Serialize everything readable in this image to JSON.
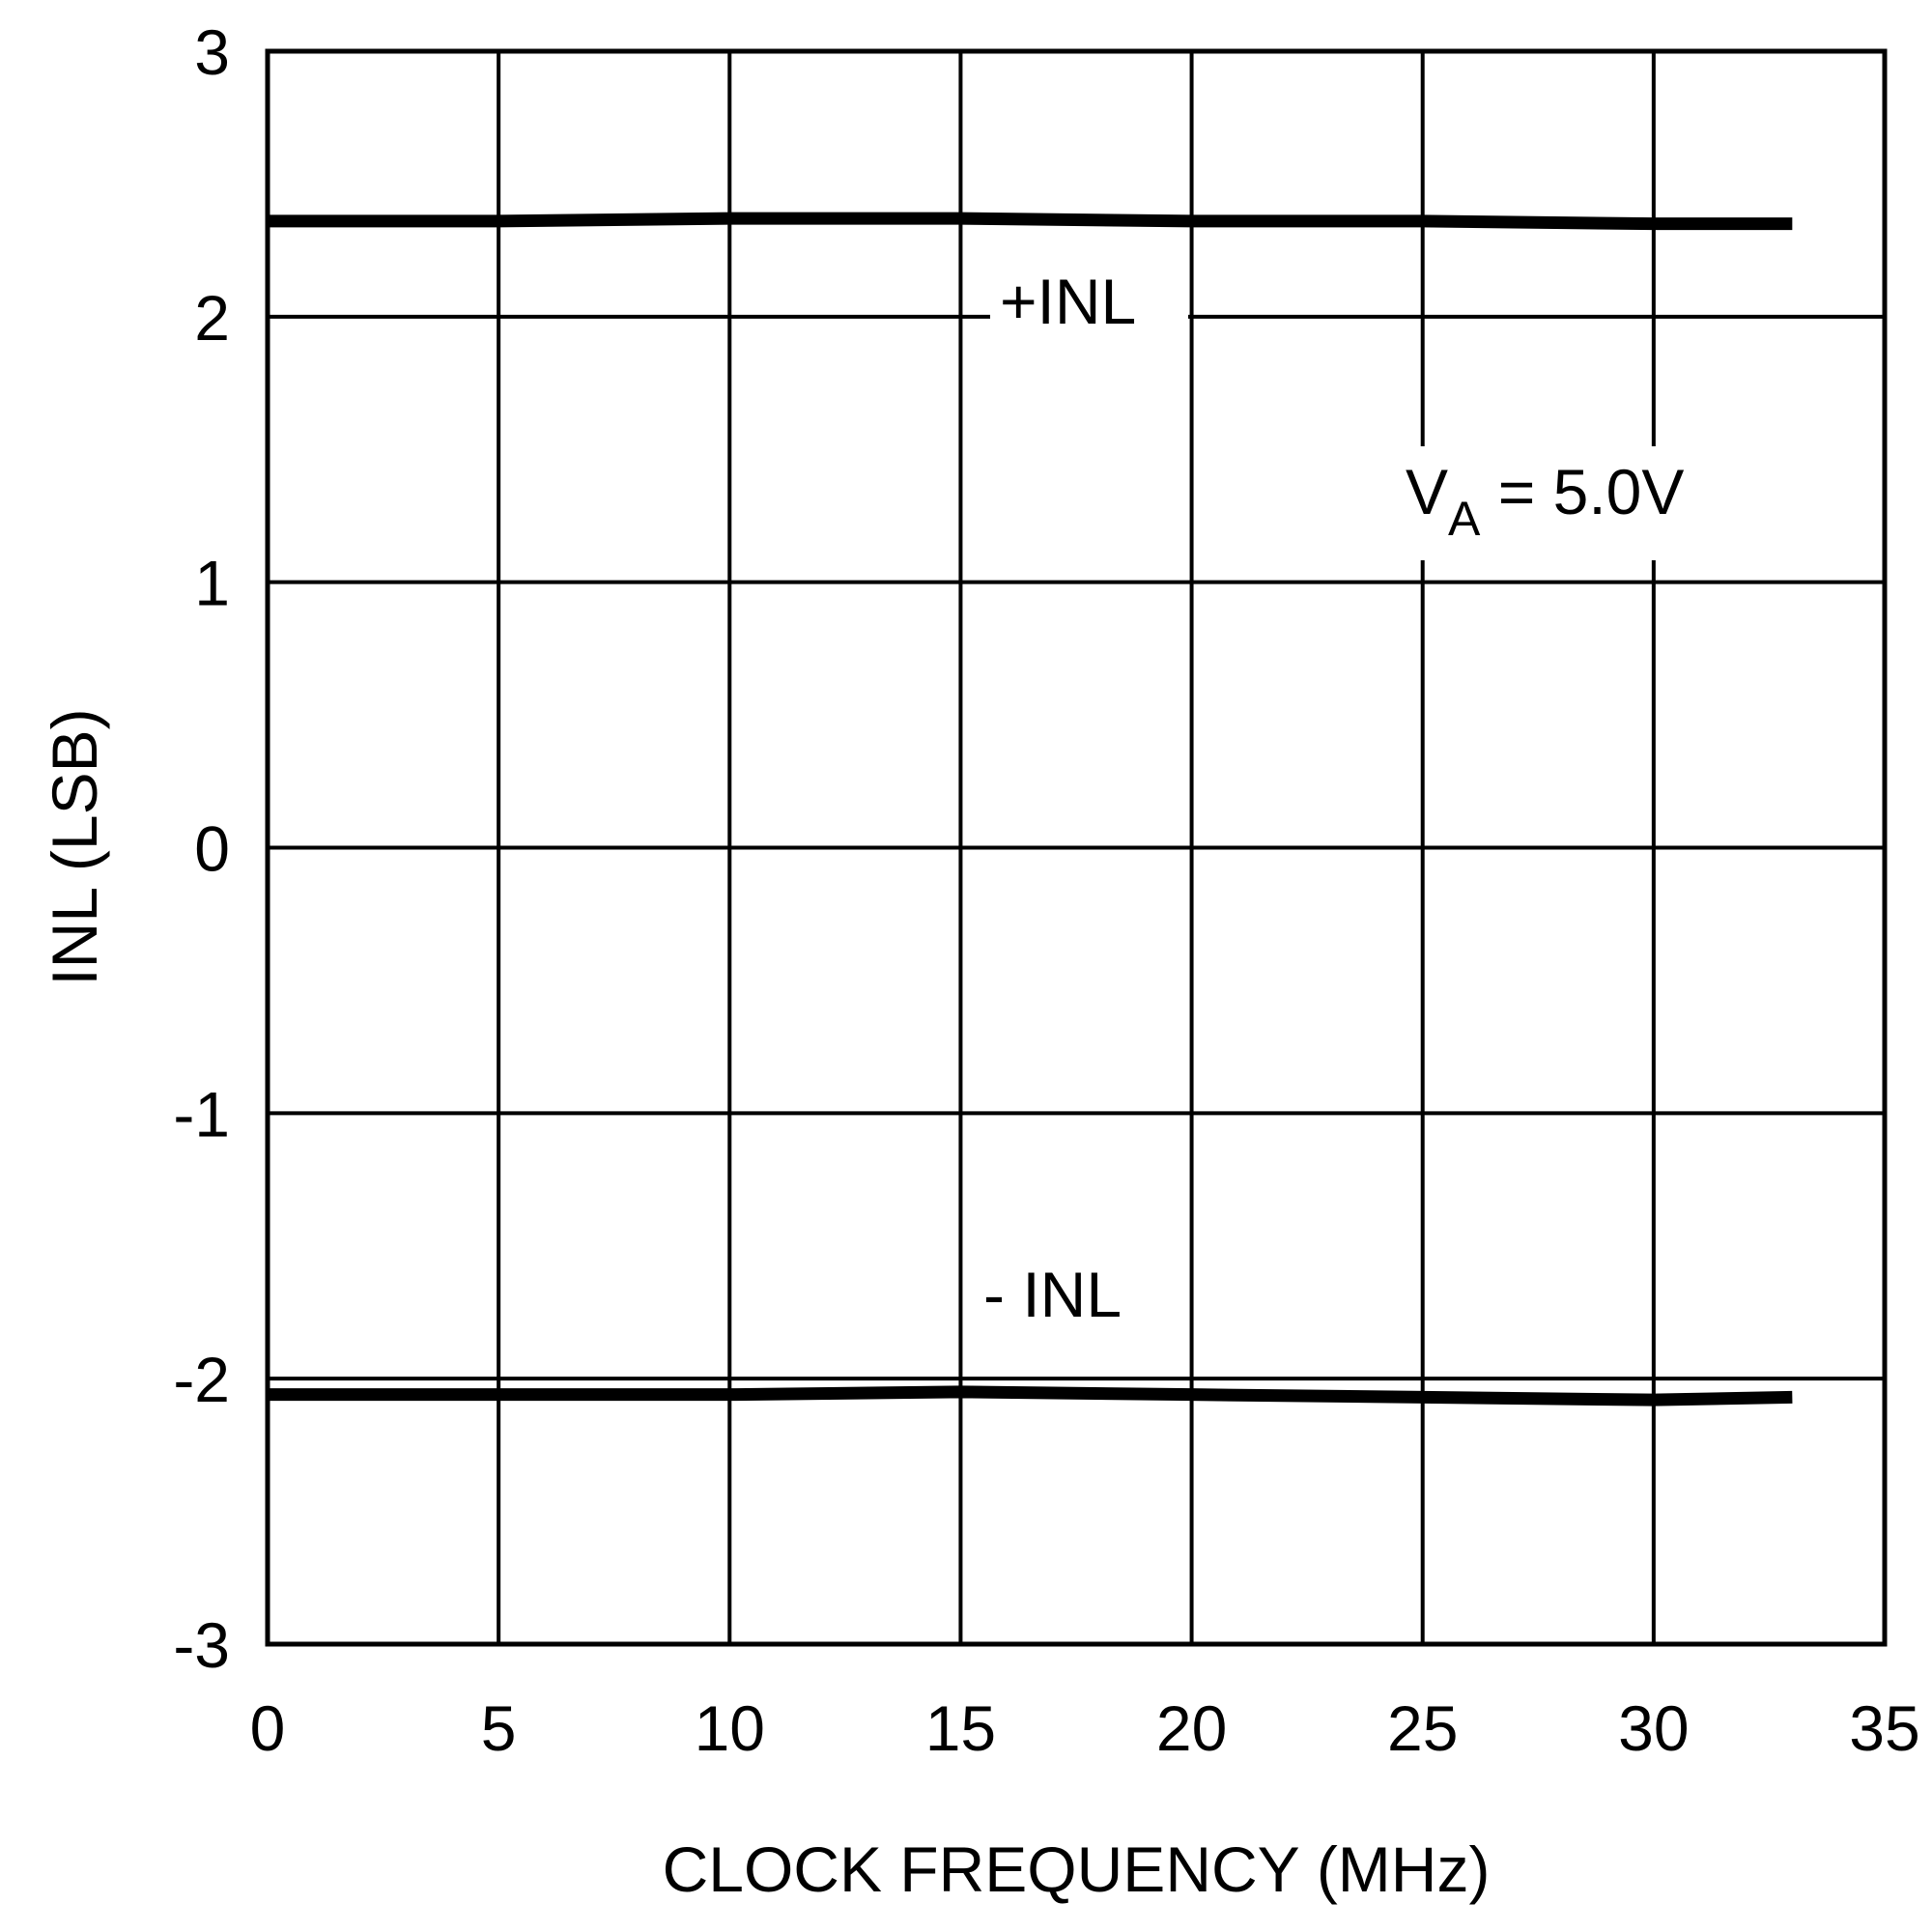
{
  "chart_data": {
    "type": "line",
    "xlabel": "CLOCK FREQUENCY (MHz)",
    "ylabel": "INL (LSB)",
    "xlim": [
      0,
      35
    ],
    "ylim": [
      -3,
      3
    ],
    "grid": true,
    "x_ticks": [
      "0",
      "5",
      "10",
      "15",
      "20",
      "25",
      "30",
      "35"
    ],
    "y_ticks": [
      "3",
      "2",
      "1",
      "0",
      "-1",
      "-2",
      "-3"
    ],
    "series": [
      {
        "name": "+INL",
        "x": [
          0,
          5,
          10,
          15,
          20,
          25,
          30,
          33
        ],
        "y": [
          2.36,
          2.36,
          2.37,
          2.37,
          2.36,
          2.36,
          2.35,
          2.35
        ],
        "color": "#000000"
      },
      {
        "name": "- INL",
        "x": [
          0,
          5,
          10,
          15,
          20,
          25,
          30,
          33
        ],
        "y": [
          -2.06,
          -2.06,
          -2.06,
          -2.05,
          -2.06,
          -2.07,
          -2.08,
          -2.07
        ],
        "color": "#000000"
      }
    ],
    "annotations": {
      "condition_main": "V",
      "condition_sub": "A",
      "condition_rest": " = 5.0V"
    }
  }
}
